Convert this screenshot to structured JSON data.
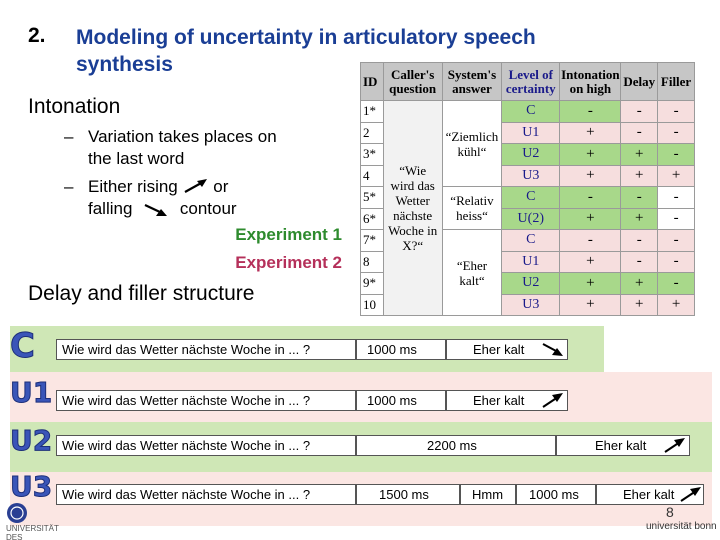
{
  "heading": {
    "number": "2.",
    "title": "Modeling of uncertainty in articulatory speech synthesis"
  },
  "intonation": {
    "title": "Intonation",
    "bullets": [
      {
        "dash": "–",
        "text": "Variation takes places on the last word"
      },
      {
        "dash": "–",
        "text_a": "Either rising",
        "text_b": "or",
        "text_c": "falling",
        "text_d": "contour"
      }
    ],
    "experiments": [
      "Experiment 1",
      "Experiment 2"
    ]
  },
  "delay_title": "Delay and filler structure",
  "table": {
    "headers": [
      "ID",
      "Caller's question",
      "System's answer",
      "Level of certainty",
      "Intonation on high",
      "Delay",
      "Filler"
    ],
    "question": "“Wie wird das Wetter nächste Woche in X?“",
    "answers": [
      "“Ziemlich kühl“",
      "“Relativ heiss“",
      "“Eher kalt“"
    ],
    "rows": [
      {
        "id": "1*",
        "level": "C",
        "i": "-",
        "d": "-",
        "f": "-"
      },
      {
        "id": "2",
        "level": "U1",
        "i": "+",
        "d": "-",
        "f": "-"
      },
      {
        "id": "3*",
        "level": "U2",
        "i": "+",
        "d": "+",
        "f": "-"
      },
      {
        "id": "4",
        "level": "U3",
        "i": "+",
        "d": "+",
        "f": "+"
      },
      {
        "id": "5*",
        "level": "C",
        "i": "-",
        "d": "-",
        "f": "-"
      },
      {
        "id": "6*",
        "level": "U(2)",
        "i": "+",
        "d": "+",
        "f": "-"
      },
      {
        "id": "7*",
        "level": "C",
        "i": "-",
        "d": "-",
        "f": "-"
      },
      {
        "id": "8",
        "level": "U1",
        "i": "+",
        "d": "-",
        "f": "-"
      },
      {
        "id": "9*",
        "level": "U2",
        "i": "+",
        "d": "+",
        "f": "-"
      },
      {
        "id": "10",
        "level": "U3",
        "i": "+",
        "d": "+",
        "f": "+"
      }
    ]
  },
  "bars": [
    {
      "letter": "C",
      "question": "Wie wird das Wetter nächste Woche in ... ?",
      "delay": "1000 ms",
      "answer": "Eher kalt",
      "arrow": "falling-arrow-icon"
    },
    {
      "letter": "U1",
      "question": "Wie wird das Wetter nächste Woche in ... ?",
      "delay": "1000 ms",
      "answer": "Eher kalt",
      "arrow": "rising-arrow-icon"
    },
    {
      "letter": "U2",
      "question": "Wie wird das Wetter nächste Woche in ... ?",
      "delay": "2200 ms",
      "answer": "Eher kalt",
      "arrow": "rising-arrow-icon"
    },
    {
      "letter": "U3",
      "question": "Wie wird das Wetter nächste Woche in ... ?",
      "delay": "1500 ms",
      "filler": "Hmm",
      "delay2": "1000 ms",
      "answer": "Eher kalt",
      "arrow": "rising-arrow-icon"
    }
  ],
  "footer": {
    "page": "8",
    "logo_text": "UNIVERSITÄT DES SAARLANDES",
    "bonn": "universität bonn"
  }
}
